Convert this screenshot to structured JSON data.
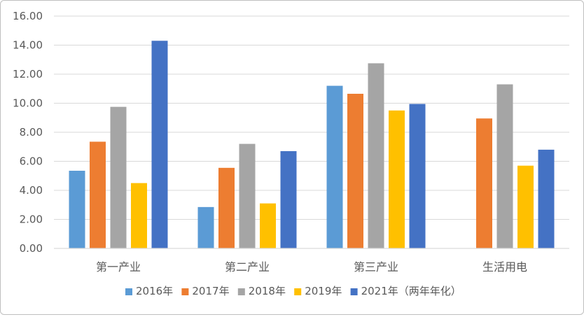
{
  "chart_data": {
    "type": "bar",
    "title": "",
    "xlabel": "",
    "ylabel": "",
    "categories": [
      "第一产业",
      "第二产业",
      "第三产业",
      "生活用电"
    ],
    "ylim": [
      0,
      16
    ],
    "yticks": [
      "0.00",
      "2.00",
      "4.00",
      "6.00",
      "8.00",
      "10.00",
      "12.00",
      "14.00",
      "16.00"
    ],
    "grid": true,
    "legend_position": "bottom",
    "series": [
      {
        "name": "2016年",
        "color": "#5b9bd5",
        "values": [
          5.35,
          2.85,
          11.2,
          null
        ]
      },
      {
        "name": "2017年",
        "color": "#ed7d31",
        "values": [
          7.35,
          5.55,
          10.65,
          8.95
        ]
      },
      {
        "name": "2018年",
        "color": "#a5a5a5",
        "values": [
          9.75,
          7.2,
          12.75,
          11.3
        ]
      },
      {
        "name": "2019年",
        "color": "#ffc000",
        "values": [
          4.5,
          3.1,
          9.5,
          5.7
        ]
      },
      {
        "name": "2021年（两年年化）",
        "color": "#4472c4",
        "values": [
          14.3,
          6.7,
          9.95,
          6.8
        ]
      }
    ]
  }
}
